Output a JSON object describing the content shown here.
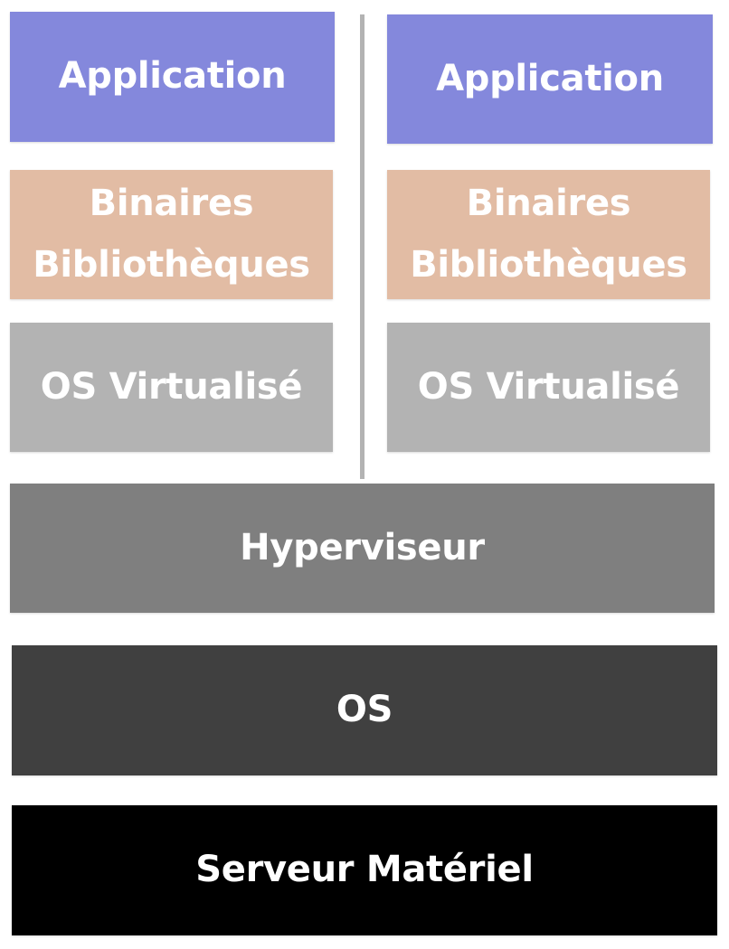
{
  "colors": {
    "application": "#8488dc",
    "binaires": "#e2bca4",
    "os_virtualise": "#b3b3b3",
    "hyperviseur": "#7f7f7f",
    "os": "#404040",
    "serveur": "#000000",
    "text": "#ffffff",
    "divider": "#b3b3b3"
  },
  "left_stack": {
    "application": "Application",
    "binaires_line1": "Binaires",
    "binaires_line2": "Bibliothèques",
    "os_virtualise": "OS Virtualisé"
  },
  "right_stack": {
    "application": "Application",
    "binaires_line1": "Binaires",
    "binaires_line2": "Bibliothèques",
    "os_virtualise": "OS Virtualisé"
  },
  "layers": {
    "hyperviseur": "Hyperviseur",
    "os": "OS",
    "serveur": "Serveur Matériel"
  }
}
